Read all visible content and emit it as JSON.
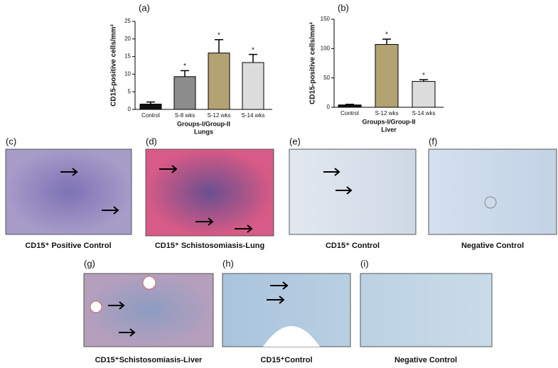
{
  "chart_data": [
    {
      "type": "bar",
      "panel": "(a)",
      "ylabel": "CD15-positive cells/mm²",
      "xlabel": "Groups-I/Group-II",
      "xlabel2": "Lungs",
      "categories": [
        "Control",
        "S-8 wks",
        "S-12 wks",
        "S-14 wks"
      ],
      "values": [
        1.5,
        9.3,
        16,
        13.3
      ],
      "errors": [
        0.6,
        1.7,
        3.8,
        2.3
      ],
      "significance": [
        null,
        "*",
        "*",
        "*"
      ],
      "colors": [
        "#111111",
        "#8c8c8c",
        "#b3a372",
        "#dcdcdc"
      ],
      "ylim": [
        0,
        25
      ],
      "yticks": [
        0,
        5,
        10,
        15,
        20,
        25
      ]
    },
    {
      "type": "bar",
      "panel": "(b)",
      "ylabel": "CD15-positive cells/mm²",
      "xlabel": "Groups-I/Group-II",
      "xlabel2": "Liver",
      "categories": [
        "Control",
        "S-12 wks",
        "S-14 wks"
      ],
      "values": [
        4,
        107,
        44
      ],
      "errors": [
        1,
        9,
        3
      ],
      "significance": [
        null,
        "*",
        "*"
      ],
      "colors": [
        "#111111",
        "#b3a372",
        "#dcdcdc"
      ],
      "ylim": [
        0,
        150
      ],
      "yticks": [
        0,
        50,
        100,
        150
      ]
    }
  ],
  "panels": [
    {
      "label": "(c)",
      "caption": "CD15⁺ Positive Control"
    },
    {
      "label": "(d)",
      "caption": "CD15⁺ Schistosomiasis-Lung"
    },
    {
      "label": "(e)",
      "caption": "CD15⁺ Control"
    },
    {
      "label": "(f)",
      "caption": "Negative Control"
    },
    {
      "label": "(g)",
      "caption": "CD15⁺Schistosomiasis-Liver"
    },
    {
      "label": "(h)",
      "caption": "CD15⁺Control"
    },
    {
      "label": "(i)",
      "caption": "Negative Control"
    }
  ]
}
